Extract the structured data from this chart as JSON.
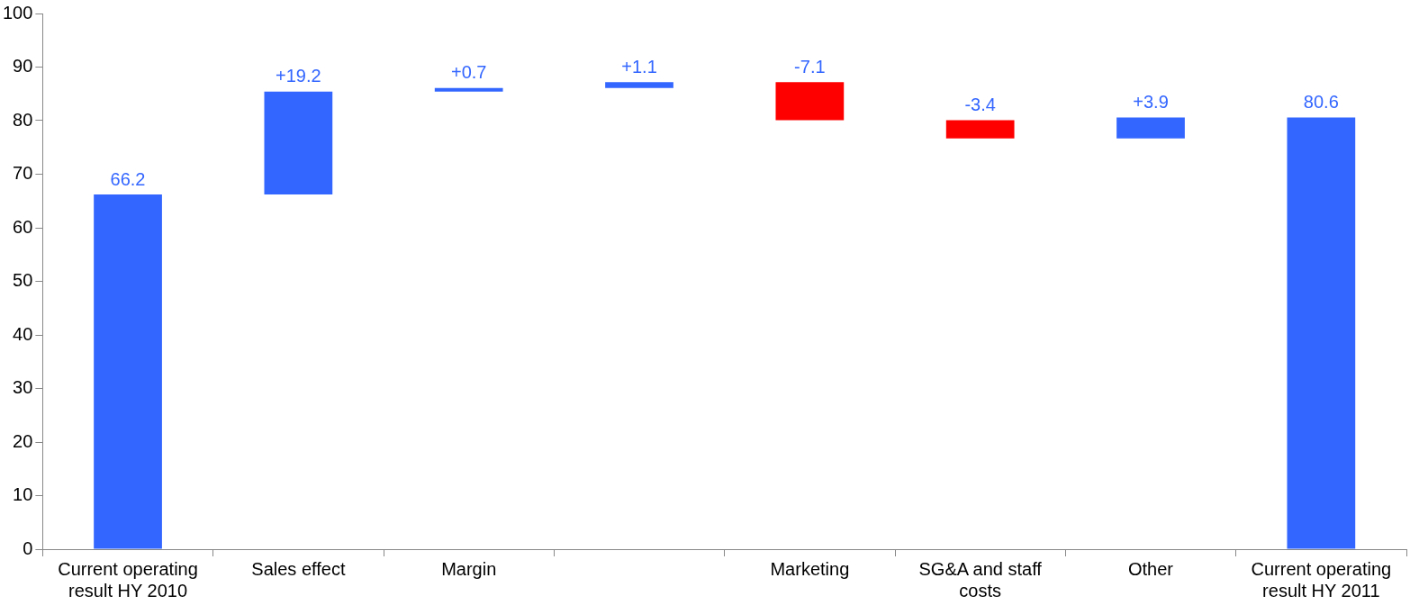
{
  "chart_data": {
    "type": "bar",
    "categories": [
      "Current operating result HY 2010",
      "Sales effect",
      "Margin",
      null,
      "Marketing",
      "SG&A and staff costs",
      "Other",
      "Current operating result HY 2011"
    ],
    "values": [
      66.2,
      19.2,
      0.7,
      1.1,
      -7.1,
      -3.4,
      3.9,
      80.6
    ],
    "base": [
      0,
      66.2,
      85.4,
      86.1,
      87.2,
      80.1,
      76.7,
      0
    ],
    "colors": [
      "#3366ff",
      "#3366ff",
      "#3366ff",
      "#3366ff",
      "#ff0000",
      "#ff0000",
      "#3366ff",
      "#3366ff"
    ],
    "value_labels": [
      "66.2",
      "+19.2",
      "+0.7",
      "+1.1",
      "-7.1",
      "-3.4",
      "+3.9",
      "80.6"
    ],
    "ylim": [
      0,
      100
    ],
    "yticks": [
      0,
      10,
      20,
      30,
      40,
      50,
      60,
      70,
      80,
      90,
      100
    ],
    "grid": false,
    "legend": false
  }
}
